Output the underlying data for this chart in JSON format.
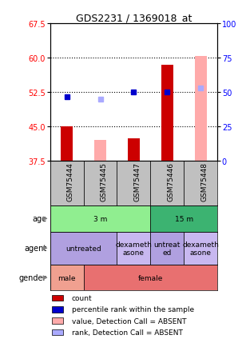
{
  "title": "GDS2231 / 1369018_at",
  "samples": [
    "GSM75444",
    "GSM75445",
    "GSM75447",
    "GSM75446",
    "GSM75448"
  ],
  "ylim_left": [
    37.5,
    67.5
  ],
  "ylim_right": [
    0,
    100
  ],
  "yticks_left": [
    37.5,
    45.0,
    52.5,
    60.0,
    67.5
  ],
  "yticks_right": [
    0,
    25,
    50,
    75,
    100
  ],
  "red_bars": {
    "GSM75444": [
      45.0,
      37.5
    ],
    "GSM75445": [
      null,
      null
    ],
    "GSM75447": [
      42.5,
      37.5
    ],
    "GSM75446": [
      58.5,
      37.5
    ],
    "GSM75448": [
      null,
      null
    ]
  },
  "pink_bars": {
    "GSM75444": [
      null,
      null
    ],
    "GSM75445": [
      42.0,
      37.5
    ],
    "GSM75447": [
      null,
      null
    ],
    "GSM75446": [
      null,
      null
    ],
    "GSM75448": [
      60.5,
      37.5
    ]
  },
  "blue_squares": {
    "GSM75444": 51.5,
    "GSM75445": null,
    "GSM75447": 52.5,
    "GSM75446": 52.5,
    "GSM75448": null
  },
  "light_blue_squares": {
    "GSM75444": null,
    "GSM75445": 51.0,
    "GSM75447": null,
    "GSM75446": null,
    "GSM75448": 53.5
  },
  "age_groups": [
    {
      "label": "3 m",
      "cols": [
        0,
        1,
        2
      ],
      "color": "#90ee90"
    },
    {
      "label": "15 m",
      "cols": [
        3,
        4
      ],
      "color": "#3cb371"
    }
  ],
  "agent_groups": [
    {
      "label": "untreated",
      "cols": [
        0,
        1
      ],
      "color": "#b0a0e0"
    },
    {
      "label": "dexameth\nasone",
      "cols": [
        2
      ],
      "color": "#c8b8f0"
    },
    {
      "label": "untreat\ned",
      "cols": [
        3
      ],
      "color": "#b0a0e0"
    },
    {
      "label": "dexameth\nasone",
      "cols": [
        4
      ],
      "color": "#c8b8f0"
    }
  ],
  "gender_groups": [
    {
      "label": "male",
      "cols": [
        0
      ],
      "color": "#f0a090"
    },
    {
      "label": "female",
      "cols": [
        1,
        2,
        3,
        4
      ],
      "color": "#e87070"
    }
  ],
  "legend": [
    {
      "color": "#cc0000",
      "label": "count"
    },
    {
      "color": "#0000cc",
      "label": "percentile rank within the sample"
    },
    {
      "color": "#ffaaaa",
      "label": "value, Detection Call = ABSENT"
    },
    {
      "color": "#aaaaff",
      "label": "rank, Detection Call = ABSENT"
    }
  ],
  "sample_bg_color": "#c0c0c0",
  "bar_width": 0.35,
  "row_label_fontsize": 7,
  "tick_fontsize": 7,
  "sample_fontsize": 6.5,
  "annotation_fontsize": 6.5,
  "legend_fontsize": 6.5,
  "title_fontsize": 9
}
